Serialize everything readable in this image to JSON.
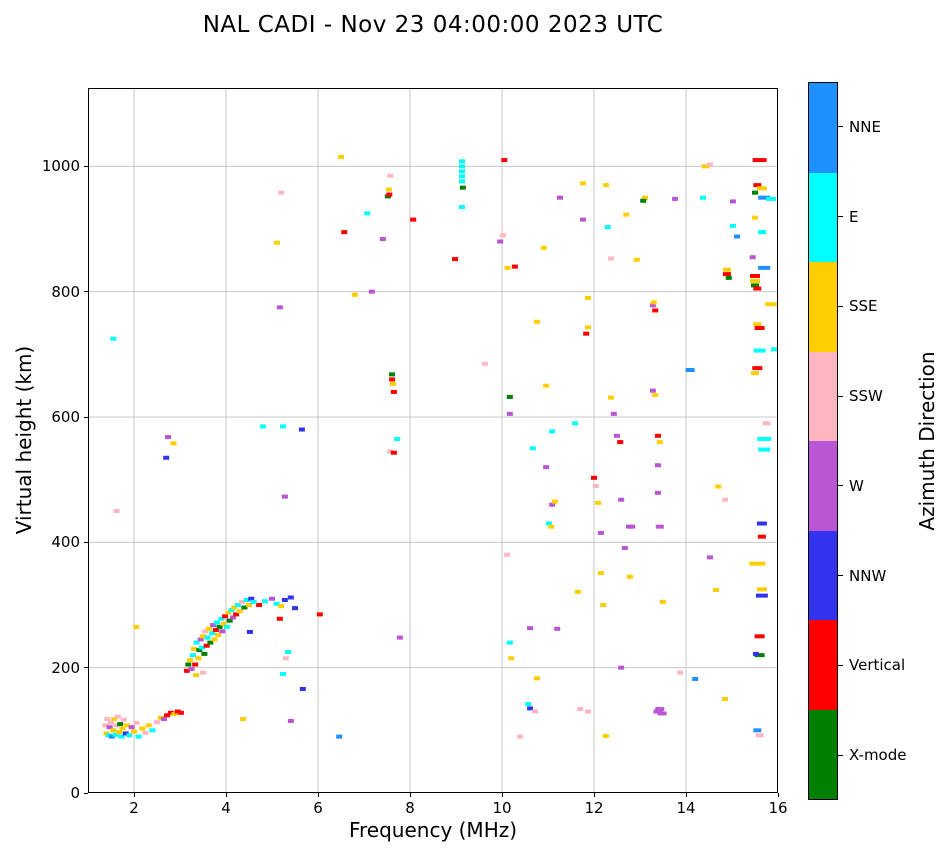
{
  "title": "NAL CADI - Nov 23 04:00:00 2023 UTC",
  "chart_data": {
    "type": "scatter",
    "title": "NAL CADI - Nov 23 04:00:00 2023 UTC",
    "xlabel": "Frequency (MHz)",
    "ylabel": "Virtual height (km)",
    "xlim": [
      1,
      16
    ],
    "ylim": [
      0,
      1125
    ],
    "x_ticks": [
      2,
      4,
      6,
      8,
      10,
      12,
      14,
      16
    ],
    "y_ticks": [
      0,
      200,
      400,
      600,
      800,
      1000
    ],
    "grid": true,
    "grid_color": "#c9c9c9",
    "colorbar": {
      "label": "Azimuth Direction",
      "categories": [
        {
          "label": "NNE",
          "color": "#1E90FF"
        },
        {
          "label": "E",
          "color": "#00FFFF"
        },
        {
          "label": "SSE",
          "color": "#FFCE00"
        },
        {
          "label": "SSW",
          "color": "#FFB6C1"
        },
        {
          "label": "W",
          "color": "#BA55D3"
        },
        {
          "label": "NNW",
          "color": "#3333EE"
        },
        {
          "label": "Vertical",
          "color": "#FF0000"
        },
        {
          "label": "X-mode",
          "color": "#008000"
        }
      ]
    },
    "points": [
      [
        1.38,
        108,
        "SSW"
      ],
      [
        1.4,
        95,
        "SSE"
      ],
      [
        1.42,
        118,
        "SSW"
      ],
      [
        1.45,
        92,
        "E"
      ],
      [
        1.47,
        105,
        "W"
      ],
      [
        1.5,
        112,
        "SSW"
      ],
      [
        1.52,
        90,
        "NNE"
      ],
      [
        1.55,
        100,
        "SSE"
      ],
      [
        1.57,
        118,
        "SSE"
      ],
      [
        1.6,
        93,
        "E"
      ],
      [
        1.62,
        108,
        "SSW"
      ],
      [
        1.65,
        122,
        "SSW"
      ],
      [
        1.68,
        97,
        "SSE"
      ],
      [
        1.7,
        110,
        "X-mode"
      ],
      [
        1.73,
        90,
        "E"
      ],
      [
        1.75,
        103,
        "SSE"
      ],
      [
        1.78,
        117,
        "SSW"
      ],
      [
        1.82,
        95,
        "NNW"
      ],
      [
        1.85,
        108,
        "SSE"
      ],
      [
        1.9,
        92,
        "E"
      ],
      [
        1.95,
        105,
        "W"
      ],
      [
        2.0,
        98,
        "SSE"
      ],
      [
        2.05,
        112,
        "SSW"
      ],
      [
        2.1,
        90,
        "E"
      ],
      [
        2.18,
        103,
        "SSE"
      ],
      [
        2.25,
        96,
        "SSW"
      ],
      [
        2.32,
        108,
        "SSE"
      ],
      [
        2.4,
        100,
        "E"
      ],
      [
        2.5,
        113,
        "SSW"
      ],
      [
        2.58,
        120,
        "SSE"
      ],
      [
        2.65,
        118,
        "W"
      ],
      [
        2.72,
        124,
        "Vertical"
      ],
      [
        2.8,
        128,
        "Vertical"
      ],
      [
        2.88,
        126,
        "SSE"
      ],
      [
        2.95,
        130,
        "Vertical"
      ],
      [
        3.02,
        128,
        "Vertical"
      ],
      [
        1.62,
        450,
        "SSW"
      ],
      [
        1.55,
        725,
        "E"
      ],
      [
        2.05,
        265,
        "SSE"
      ],
      [
        2.74,
        568,
        "W"
      ],
      [
        2.86,
        558,
        "SSE"
      ],
      [
        2.7,
        535,
        "NNW"
      ],
      [
        3.15,
        195,
        "Vertical"
      ],
      [
        3.18,
        205,
        "X-mode"
      ],
      [
        3.22,
        212,
        "SSE"
      ],
      [
        3.25,
        198,
        "W"
      ],
      [
        3.28,
        220,
        "E"
      ],
      [
        3.3,
        230,
        "SSE"
      ],
      [
        3.33,
        205,
        "Vertical"
      ],
      [
        3.35,
        188,
        "SSE"
      ],
      [
        3.36,
        240,
        "E"
      ],
      [
        3.4,
        215,
        "SSE"
      ],
      [
        3.42,
        228,
        "X-mode"
      ],
      [
        3.45,
        245,
        "W"
      ],
      [
        3.48,
        232,
        "E"
      ],
      [
        3.5,
        192,
        "SSW"
      ],
      [
        3.5,
        250,
        "SSE"
      ],
      [
        3.53,
        222,
        "X-mode"
      ],
      [
        3.55,
        258,
        "SSW"
      ],
      [
        3.58,
        235,
        "Vertical"
      ],
      [
        3.6,
        248,
        "E"
      ],
      [
        3.63,
        262,
        "SSE"
      ],
      [
        3.66,
        240,
        "X-mode"
      ],
      [
        3.7,
        255,
        "E"
      ],
      [
        3.72,
        268,
        "W"
      ],
      [
        3.75,
        245,
        "SSE"
      ],
      [
        3.78,
        260,
        "Vertical"
      ],
      [
        3.8,
        272,
        "E"
      ],
      [
        3.83,
        252,
        "SSE"
      ],
      [
        3.86,
        265,
        "X-mode"
      ],
      [
        3.9,
        278,
        "E"
      ],
      [
        3.92,
        258,
        "W"
      ],
      [
        3.95,
        270,
        "SSE"
      ],
      [
        3.98,
        282,
        "Vertical"
      ],
      [
        4.02,
        265,
        "E"
      ],
      [
        4.05,
        288,
        "SSE"
      ],
      [
        4.08,
        275,
        "X-mode"
      ],
      [
        4.12,
        292,
        "E"
      ],
      [
        4.15,
        280,
        "W"
      ],
      [
        4.18,
        296,
        "SSE"
      ],
      [
        4.22,
        285,
        "Vertical"
      ],
      [
        4.26,
        300,
        "E"
      ],
      [
        4.3,
        290,
        "SSE"
      ],
      [
        4.35,
        305,
        "SSW"
      ],
      [
        4.37,
        118,
        "SSE"
      ],
      [
        4.4,
        296,
        "X-mode"
      ],
      [
        4.45,
        308,
        "E"
      ],
      [
        4.5,
        300,
        "SSE"
      ],
      [
        4.52,
        257,
        "NNW"
      ],
      [
        4.55,
        310,
        "NNW"
      ],
      [
        4.6,
        305,
        "E"
      ],
      [
        4.72,
        300,
        "Vertical"
      ],
      [
        4.8,
        585,
        "E"
      ],
      [
        4.85,
        306,
        "E"
      ],
      [
        5.0,
        310,
        "W"
      ],
      [
        5.1,
        302,
        "E"
      ],
      [
        5.17,
        278,
        "Vertical"
      ],
      [
        5.2,
        298,
        "SSE"
      ],
      [
        5.28,
        308,
        "NNW"
      ],
      [
        5.41,
        312,
        "NNW"
      ],
      [
        5.5,
        295,
        "NNW"
      ],
      [
        6.04,
        285,
        "Vertical"
      ],
      [
        5.11,
        878,
        "SSE"
      ],
      [
        5.2,
        958,
        "SSW"
      ],
      [
        5.17,
        775,
        "W"
      ],
      [
        5.24,
        585,
        "E"
      ],
      [
        5.28,
        473,
        "W"
      ],
      [
        5.24,
        190,
        "E"
      ],
      [
        5.3,
        215,
        "SSW"
      ],
      [
        5.35,
        225,
        "E"
      ],
      [
        5.41,
        115,
        "W"
      ],
      [
        5.65,
        580,
        "NNW"
      ],
      [
        5.67,
        166,
        "NNW"
      ],
      [
        6.46,
        90,
        "NNE"
      ],
      [
        6.5,
        1015,
        "SSE"
      ],
      [
        6.57,
        895,
        "Vertical"
      ],
      [
        6.8,
        795,
        "SSE"
      ],
      [
        7.07,
        925,
        "E"
      ],
      [
        7.17,
        800,
        "W"
      ],
      [
        7.41,
        884,
        "W"
      ],
      [
        7.52,
        952,
        "X-mode"
      ],
      [
        7.54,
        963,
        "SSE"
      ],
      [
        7.57,
        985,
        "SSW"
      ],
      [
        7.55,
        955,
        "Vertical"
      ],
      [
        7.61,
        668,
        "X-mode"
      ],
      [
        7.61,
        660,
        "Vertical"
      ],
      [
        7.63,
        653,
        "SSE"
      ],
      [
        7.65,
        640,
        "Vertical"
      ],
      [
        7.57,
        545,
        "SSW"
      ],
      [
        7.65,
        543,
        "Vertical"
      ],
      [
        7.72,
        565,
        "E"
      ],
      [
        7.78,
        248,
        "W"
      ],
      [
        8.07,
        915,
        "Vertical"
      ],
      [
        8.98,
        852,
        "Vertical"
      ],
      [
        9.13,
        1008,
        "E"
      ],
      [
        9.13,
        1000,
        "E"
      ],
      [
        9.13,
        992,
        "E"
      ],
      [
        9.13,
        984,
        "E"
      ],
      [
        9.13,
        976,
        "E"
      ],
      [
        9.15,
        966,
        "X-mode"
      ],
      [
        9.13,
        935,
        "E"
      ],
      [
        9.63,
        685,
        "SSW"
      ],
      [
        9.96,
        880,
        "W"
      ],
      [
        10.02,
        890,
        "SSW"
      ],
      [
        10.05,
        1010,
        "Vertical"
      ],
      [
        10.28,
        840,
        "Vertical"
      ],
      [
        10.12,
        838,
        "SSE"
      ],
      [
        10.17,
        632,
        "X-mode"
      ],
      [
        10.17,
        605,
        "W"
      ],
      [
        10.11,
        380,
        "SSW"
      ],
      [
        10.17,
        240,
        "E"
      ],
      [
        10.2,
        215,
        "SSE"
      ],
      [
        10.39,
        90,
        "SSW"
      ],
      [
        10.61,
        135,
        "NNW"
      ],
      [
        10.72,
        130,
        "SSW"
      ],
      [
        10.57,
        142,
        "E"
      ],
      [
        10.76,
        183,
        "SSE"
      ],
      [
        10.67,
        550,
        "E"
      ],
      [
        10.76,
        752,
        "SSE"
      ],
      [
        10.91,
        870,
        "SSE"
      ],
      [
        10.96,
        650,
        "SSE"
      ],
      [
        11.09,
        577,
        "E"
      ],
      [
        10.96,
        520,
        "W"
      ],
      [
        11.09,
        460,
        "W"
      ],
      [
        11.15,
        465,
        "SSE"
      ],
      [
        11.02,
        430,
        "E"
      ],
      [
        11.07,
        425,
        "SSE"
      ],
      [
        11.2,
        262,
        "W"
      ],
      [
        10.61,
        263,
        "W"
      ],
      [
        11.26,
        950,
        "W"
      ],
      [
        11.59,
        590,
        "E"
      ],
      [
        11.65,
        321,
        "SSE"
      ],
      [
        11.7,
        134,
        "SSW"
      ],
      [
        11.87,
        130,
        "SSW"
      ],
      [
        11.76,
        973,
        "SSE"
      ],
      [
        11.76,
        915,
        "W"
      ],
      [
        11.87,
        790,
        "SSE"
      ],
      [
        11.87,
        743,
        "SSE"
      ],
      [
        11.83,
        733,
        "Vertical"
      ],
      [
        12.0,
        503,
        "Vertical"
      ],
      [
        12.04,
        490,
        "SSW"
      ],
      [
        12.09,
        463,
        "SSE"
      ],
      [
        12.15,
        415,
        "W"
      ],
      [
        12.15,
        351,
        "SSE"
      ],
      [
        12.2,
        300,
        "SSE"
      ],
      [
        12.26,
        91,
        "SSE"
      ],
      [
        12.26,
        970,
        "SSE"
      ],
      [
        12.3,
        903,
        "E"
      ],
      [
        12.37,
        853,
        "SSW"
      ],
      [
        12.37,
        631,
        "SSE"
      ],
      [
        12.43,
        605,
        "W"
      ],
      [
        12.5,
        570,
        "W"
      ],
      [
        12.57,
        560,
        "Vertical"
      ],
      [
        12.59,
        468,
        "W"
      ],
      [
        12.76,
        425,
        "W"
      ],
      [
        12.83,
        425,
        "W"
      ],
      [
        12.67,
        391,
        "W"
      ],
      [
        12.78,
        345,
        "SSE"
      ],
      [
        12.59,
        200,
        "W"
      ],
      [
        12.93,
        851,
        "SSE"
      ],
      [
        12.7,
        923,
        "SSE"
      ],
      [
        13.11,
        950,
        "SSE"
      ],
      [
        13.07,
        945,
        "X-mode"
      ],
      [
        13.28,
        778,
        "W"
      ],
      [
        13.33,
        770,
        "Vertical"
      ],
      [
        13.3,
        783,
        "SSE"
      ],
      [
        13.28,
        642,
        "W"
      ],
      [
        13.33,
        635,
        "SSE"
      ],
      [
        13.39,
        570,
        "Vertical"
      ],
      [
        13.43,
        560,
        "SSE"
      ],
      [
        13.39,
        523,
        "W"
      ],
      [
        13.39,
        479,
        "W"
      ],
      [
        13.43,
        425,
        "W",
        8
      ],
      [
        13.5,
        305,
        "SSE"
      ],
      [
        13.39,
        130,
        "W",
        9
      ],
      [
        13.48,
        127,
        "W",
        9
      ],
      [
        13.43,
        134,
        "W",
        9
      ],
      [
        13.76,
        948,
        "W"
      ],
      [
        13.87,
        192,
        "SSW"
      ],
      [
        14.09,
        675,
        "NNE",
        9
      ],
      [
        14.2,
        182,
        "NNE"
      ],
      [
        14.37,
        950,
        "E"
      ],
      [
        14.43,
        1000,
        "SSE",
        8
      ],
      [
        14.52,
        1003,
        "SSW"
      ],
      [
        14.52,
        376,
        "W"
      ],
      [
        14.65,
        324,
        "SSE"
      ],
      [
        14.7,
        489,
        "SSE"
      ],
      [
        14.85,
        468,
        "SSW"
      ],
      [
        14.85,
        150,
        "SSE"
      ],
      [
        14.89,
        835,
        "SSE",
        8
      ],
      [
        14.89,
        828,
        "Vertical",
        8
      ],
      [
        14.93,
        822,
        "X-mode"
      ],
      [
        15.02,
        944,
        "W"
      ],
      [
        15.02,
        905,
        "E"
      ],
      [
        15.11,
        888,
        "NNE"
      ],
      [
        15.6,
        1010,
        "Vertical",
        14
      ],
      [
        15.55,
        970,
        "Vertical",
        8
      ],
      [
        15.65,
        965,
        "SSE",
        10
      ],
      [
        15.5,
        958,
        "X-mode",
        6
      ],
      [
        15.7,
        950,
        "NNE",
        12
      ],
      [
        15.85,
        948,
        "E",
        10
      ],
      [
        15.5,
        918,
        "SSE",
        6
      ],
      [
        15.65,
        895,
        "E",
        8
      ],
      [
        15.45,
        855,
        "W",
        6
      ],
      [
        15.7,
        838,
        "NNE",
        12
      ],
      [
        15.5,
        825,
        "Vertical",
        10
      ],
      [
        15.5,
        817,
        "SSE",
        10
      ],
      [
        15.5,
        810,
        "X-mode",
        8
      ],
      [
        15.55,
        805,
        "Vertical",
        8
      ],
      [
        15.9,
        780,
        "SSE",
        12
      ],
      [
        15.55,
        748,
        "SSE",
        8
      ],
      [
        15.6,
        742,
        "Vertical",
        10
      ],
      [
        15.6,
        706,
        "E",
        12
      ],
      [
        15.95,
        708,
        "E"
      ],
      [
        15.55,
        678,
        "Vertical",
        10
      ],
      [
        15.5,
        670,
        "SSE",
        8
      ],
      [
        15.75,
        590,
        "SSW",
        8
      ],
      [
        15.7,
        565,
        "E",
        14
      ],
      [
        15.7,
        548,
        "E",
        12
      ],
      [
        15.65,
        430,
        "NNW",
        10
      ],
      [
        15.65,
        409,
        "Vertical",
        8
      ],
      [
        15.55,
        366,
        "SSE",
        16
      ],
      [
        15.65,
        325,
        "SSE",
        10
      ],
      [
        15.65,
        315,
        "NNW",
        12
      ],
      [
        15.6,
        250,
        "Vertical",
        10
      ],
      [
        15.6,
        220,
        "X-mode",
        10
      ],
      [
        15.52,
        222,
        "NNW"
      ],
      [
        15.55,
        100,
        "NNE",
        8
      ],
      [
        15.6,
        92,
        "SSW",
        8
      ]
    ]
  }
}
